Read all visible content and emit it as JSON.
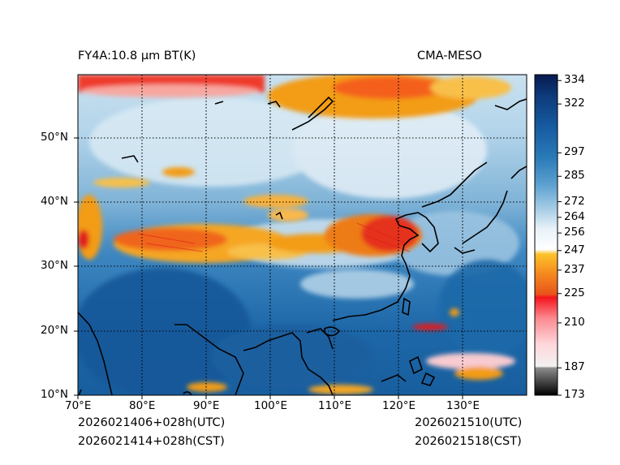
{
  "header": {
    "left_title": "FY4A:10.8 µm BT(K)",
    "right_title": "CMA-MESO"
  },
  "footer": {
    "init_utc": "2026021406+028h(UTC)",
    "init_cst": "2026021414+028h(CST)",
    "valid_utc": "2026021510(UTC)",
    "valid_cst": "2026021518(CST)"
  },
  "map": {
    "lon_range": [
      70,
      140
    ],
    "lat_range": [
      10,
      60
    ],
    "lon_ticks": [
      70,
      80,
      90,
      100,
      110,
      120,
      130
    ],
    "lon_labels": [
      "70°E",
      "80°E",
      "90°E",
      "100°E",
      "110°E",
      "120°E",
      "130°E"
    ],
    "lat_ticks": [
      20,
      30,
      40,
      50
    ],
    "lat_labels": [
      "20°N",
      "30°N",
      "40°N",
      "50°N"
    ],
    "lat_bottom_label": "10°N"
  },
  "colorbar": {
    "range": [
      173,
      337
    ],
    "ticks": [
      173,
      187,
      210,
      225,
      237,
      247,
      256,
      264,
      272,
      285,
      297,
      322,
      334
    ],
    "tick_labels": [
      "173",
      "187",
      "210",
      "225",
      "237",
      "247",
      "256",
      "264",
      "272",
      "285",
      "297",
      "322",
      "334"
    ]
  },
  "colors": {
    "deep_blue": "#0b3d7a",
    "mid_blue": "#2f7fbf",
    "light_blue": "#a9cfe6",
    "cloud_white": "#eef5fa",
    "orange": "#f39c12",
    "red": "#e31a1c",
    "coast": "#000000"
  }
}
